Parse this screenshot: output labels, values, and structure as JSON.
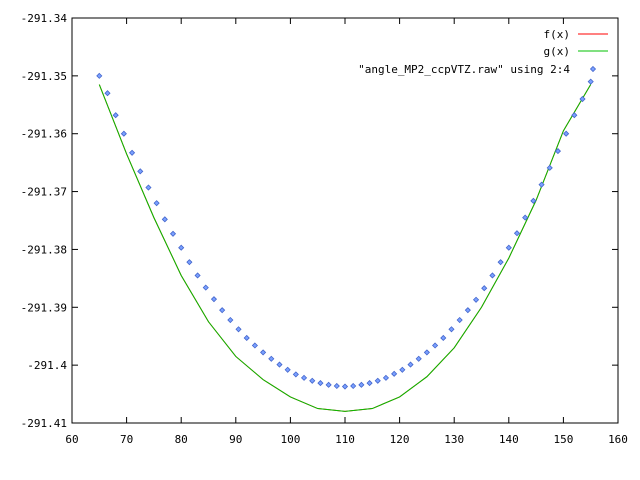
{
  "chart_data": {
    "type": "line",
    "title": "",
    "xlabel": "",
    "ylabel": "",
    "xlim": [
      60,
      160
    ],
    "ylim": [
      -291.41,
      -291.34
    ],
    "x_ticks": [
      "60",
      "70",
      "80",
      "90",
      "100",
      "110",
      "120",
      "130",
      "140",
      "150",
      "160"
    ],
    "y_ticks": [
      "-291.34",
      "-291.35",
      "-291.36",
      "-291.37",
      "-291.38",
      "-291.39",
      "-291.4",
      "-291.41"
    ],
    "grid": false,
    "legend_position": "top-right",
    "series": [
      {
        "name": "f(x)",
        "style": "line",
        "color": "#ff0000",
        "x": [
          65,
          70,
          75,
          80,
          85,
          90,
          95,
          100,
          105,
          110,
          115,
          120,
          125,
          130,
          135,
          140,
          145,
          150,
          155
        ],
        "y": [
          -291.3515,
          -291.3635,
          -291.3745,
          -291.3845,
          -291.3925,
          -291.3985,
          -291.4025,
          -291.4055,
          -291.4075,
          -291.408,
          -291.4075,
          -291.4055,
          -291.402,
          -291.397,
          -291.39,
          -291.3815,
          -291.3715,
          -291.3595,
          -291.3515
        ]
      },
      {
        "name": "g(x)",
        "style": "line",
        "color": "#00c000",
        "x": [
          65,
          70,
          75,
          80,
          85,
          90,
          95,
          100,
          105,
          110,
          115,
          120,
          125,
          130,
          135,
          140,
          145,
          150,
          155
        ],
        "y": [
          -291.3515,
          -291.3635,
          -291.3745,
          -291.3845,
          -291.3925,
          -291.3985,
          -291.4025,
          -291.4055,
          -291.4075,
          -291.408,
          -291.4075,
          -291.4055,
          -291.402,
          -291.397,
          -291.39,
          -291.3815,
          -291.3715,
          -291.3595,
          -291.3515
        ]
      },
      {
        "name": "\"angle_MP2_ccpVTZ.raw\" using 2:4",
        "style": "points",
        "color": "#4466cc",
        "x": [
          65,
          66.5,
          68,
          69.5,
          71,
          72.5,
          74,
          75.5,
          77,
          78.5,
          80,
          81.5,
          83,
          84.5,
          86,
          87.5,
          89,
          90.5,
          92,
          93.5,
          95,
          96.5,
          98,
          99.5,
          101,
          102.5,
          104,
          105.5,
          107,
          108.5,
          110,
          111.5,
          113,
          114.5,
          116,
          117.5,
          119,
          120.5,
          122,
          123.5,
          125,
          126.5,
          128,
          129.5,
          131,
          132.5,
          134,
          135.5,
          137,
          138.5,
          140,
          141.5,
          143,
          144.5,
          146,
          147.5,
          149,
          150.5,
          152,
          153.5,
          155
        ],
        "y": [
          -291.35,
          -291.353,
          -291.3568,
          -291.36,
          -291.3633,
          -291.3665,
          -291.3693,
          -291.372,
          -291.3748,
          -291.3773,
          -291.3797,
          -291.3822,
          -291.3845,
          -291.3866,
          -291.3886,
          -291.3905,
          -291.3922,
          -291.3938,
          -291.3953,
          -291.3966,
          -291.3978,
          -291.3989,
          -291.3999,
          -291.4008,
          -291.4016,
          -291.4022,
          -291.4027,
          -291.4031,
          -291.4034,
          -291.4036,
          -291.4037,
          -291.4036,
          -291.4034,
          -291.4031,
          -291.4027,
          -291.4022,
          -291.4015,
          -291.4008,
          -291.3999,
          -291.3989,
          -291.3978,
          -291.3966,
          -291.3953,
          -291.3938,
          -291.3922,
          -291.3905,
          -291.3887,
          -291.3867,
          -291.3845,
          -291.3822,
          -291.3797,
          -291.3772,
          -291.3745,
          -291.3716,
          -291.3688,
          -291.3659,
          -291.363,
          -291.36,
          -291.3568,
          -291.354,
          -291.351
        ]
      }
    ]
  }
}
